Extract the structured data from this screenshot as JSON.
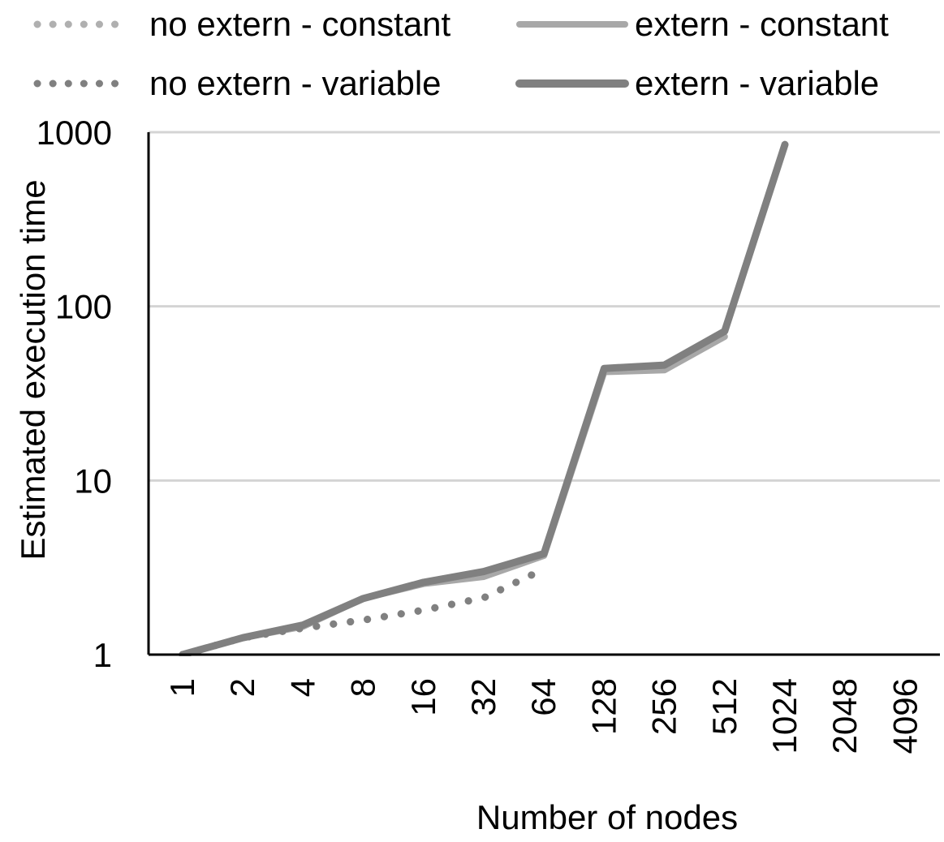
{
  "chart_data": {
    "type": "line",
    "title": "",
    "xlabel": "Number of nodes",
    "ylabel": "Estimated execution time",
    "yscale": "log",
    "ylim": [
      1,
      1000
    ],
    "yticks": [
      "1",
      "10",
      "100",
      "1000"
    ],
    "ytick_values": [
      1,
      10,
      100,
      1000
    ],
    "categories": [
      "1",
      "2",
      "4",
      "8",
      "16",
      "32",
      "64",
      "128",
      "256",
      "512",
      "1024",
      "2048",
      "4096"
    ],
    "grid": "horizontal",
    "legend_position": "top",
    "series": [
      {
        "name": "no extern - constant",
        "style": "dotted",
        "color": "#b0b0b0",
        "values": [
          1,
          1.25,
          1.42,
          1.58,
          1.8,
          2.12,
          3.1,
          null,
          null,
          null,
          null,
          null,
          null
        ]
      },
      {
        "name": "extern - constant",
        "style": "solid",
        "color": "#a8a8a8",
        "values": [
          1,
          1.25,
          1.45,
          2.1,
          2.55,
          2.8,
          3.7,
          42,
          43,
          67,
          null,
          null,
          null
        ]
      },
      {
        "name": "no extern - variable",
        "style": "dotted",
        "color": "#808080",
        "values": [
          1,
          1.25,
          1.42,
          1.58,
          1.8,
          2.12,
          3.1,
          null,
          null,
          null,
          null,
          null,
          null
        ]
      },
      {
        "name": "extern - variable",
        "style": "solid",
        "color": "#808080",
        "values": [
          1,
          1.25,
          1.48,
          2.1,
          2.6,
          3.0,
          3.8,
          44,
          46,
          72,
          850,
          null,
          null
        ]
      }
    ]
  }
}
